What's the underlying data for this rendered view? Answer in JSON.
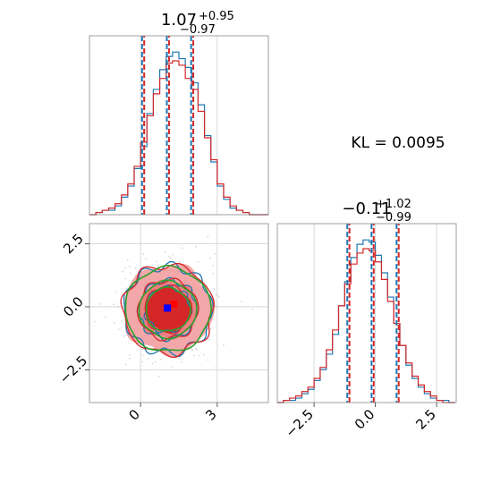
{
  "chart_data": [
    {
      "type": "histogram",
      "panel": "top-left",
      "title": {
        "value": "1.07",
        "plus": "+0.95",
        "minus": "−0.97"
      },
      "xlim": [
        -2.0,
        5.0
      ],
      "series": [
        {
          "name": "",
          "color": "#1f77b4",
          "bin_edges": [
            -2.0,
            -1.75,
            -1.5,
            -1.25,
            -1.0,
            -0.75,
            -0.5,
            -0.25,
            0.0,
            0.25,
            0.5,
            0.75,
            1.0,
            1.25,
            1.5,
            1.75,
            2.0,
            2.25,
            2.5,
            2.75,
            3.0,
            3.25,
            3.5,
            3.75,
            4.0,
            4.25,
            4.5,
            4.75,
            5.0
          ],
          "counts": [
            0,
            1,
            2,
            2,
            4,
            8,
            13,
            21,
            31,
            46,
            57,
            66,
            72,
            74,
            71,
            67,
            60,
            50,
            36,
            24,
            13,
            7,
            3,
            2,
            1,
            0,
            0,
            0
          ]
        },
        {
          "name": "",
          "color": "#d62728",
          "bin_edges": [
            -2.0,
            -1.75,
            -1.5,
            -1.25,
            -1.0,
            -0.75,
            -0.5,
            -0.25,
            0.0,
            0.25,
            0.5,
            0.75,
            1.0,
            1.25,
            1.5,
            1.75,
            2.0,
            2.25,
            2.5,
            2.75,
            3.0,
            3.25,
            3.5,
            3.75,
            4.0,
            4.25,
            4.5,
            4.75,
            5.0
          ],
          "counts": [
            0,
            1,
            2,
            3,
            5,
            9,
            14,
            22,
            33,
            45,
            55,
            62,
            69,
            70,
            68,
            62,
            57,
            47,
            35,
            25,
            14,
            8,
            4,
            2,
            1,
            0,
            0,
            0
          ]
        }
      ],
      "quantile_lines": [
        0.1,
        1.07,
        2.02
      ]
    },
    {
      "type": "histogram",
      "panel": "bottom-right",
      "title": {
        "value": "−0.11",
        "plus": "+1.02",
        "minus": "−0.99"
      },
      "xlim": [
        -4.0,
        3.3
      ],
      "xticks": [
        "−2.5",
        "0.0",
        "2.5"
      ],
      "series": [
        {
          "name": "",
          "color": "#1f77b4",
          "bin_edges": [
            -4.0,
            -3.75,
            -3.5,
            -3.25,
            -3.0,
            -2.75,
            -2.5,
            -2.25,
            -2.0,
            -1.75,
            -1.5,
            -1.25,
            -1.0,
            -0.75,
            -0.5,
            -0.25,
            0.0,
            0.25,
            0.5,
            0.75,
            1.0,
            1.25,
            1.5,
            1.75,
            2.0,
            2.25,
            2.5,
            2.75,
            3.0,
            3.25
          ],
          "counts": [
            0,
            1,
            1,
            2,
            4,
            6,
            10,
            15,
            22,
            31,
            44,
            55,
            66,
            72,
            74,
            73,
            67,
            59,
            48,
            36,
            26,
            17,
            11,
            7,
            4,
            2,
            1,
            1,
            0
          ]
        },
        {
          "name": "",
          "color": "#d62728",
          "bin_edges": [
            -4.0,
            -3.75,
            -3.5,
            -3.25,
            -3.0,
            -2.75,
            -2.5,
            -2.25,
            -2.0,
            -1.75,
            -1.5,
            -1.25,
            -1.0,
            -0.75,
            -0.5,
            -0.25,
            0.0,
            0.25,
            0.5,
            0.75,
            1.0,
            1.25,
            1.5,
            1.75,
            2.0,
            2.25,
            2.5,
            2.75,
            3.0,
            3.25
          ],
          "counts": [
            0,
            1,
            2,
            3,
            5,
            7,
            11,
            16,
            24,
            33,
            44,
            54,
            63,
            68,
            70,
            69,
            64,
            56,
            46,
            36,
            26,
            18,
            12,
            8,
            5,
            3,
            1,
            0,
            0
          ]
        }
      ],
      "quantile_lines": [
        -1.1,
        -0.11,
        0.91
      ]
    },
    {
      "type": "contour",
      "panel": "bottom-left",
      "xlim": [
        -2.0,
        5.0
      ],
      "ylim": [
        -3.8,
        3.3
      ],
      "xticks": [
        "0",
        "3"
      ],
      "yticks": [
        "2.5",
        "0.0",
        "−2.5"
      ],
      "center": [
        1.07,
        -0.11
      ],
      "levels_sigma": [
        0.5,
        1.0,
        1.5
      ],
      "filled_color": "#d62728",
      "line_colors": [
        "#1f77b4",
        "#d62728",
        "#2ca02c"
      ],
      "markers": [
        {
          "label": "",
          "color": "#ff0000",
          "x": 1.3,
          "y": 0.1
        },
        {
          "label": "",
          "color": "#0000ff",
          "x": 1.05,
          "y": -0.05
        }
      ]
    }
  ],
  "annotation": {
    "kl_text": "KL = 0.0095"
  }
}
